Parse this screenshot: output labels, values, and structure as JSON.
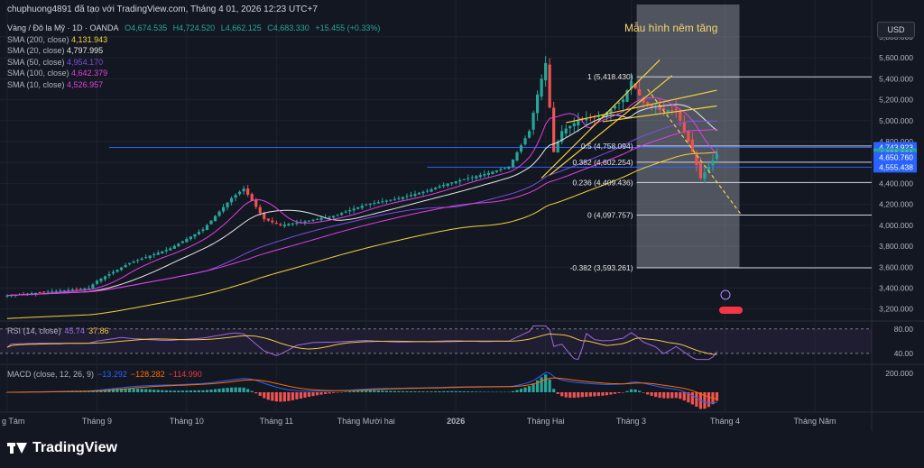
{
  "header": {
    "title": "chuphuong4891 đã tạo với TradingView.com, Tháng 4 01, 2026 12:23 UTC+7",
    "symbol": "Vàng / Đô la Mỹ · 1D · OANDA",
    "ohlc": {
      "o": "O4,674.535",
      "h": "H4,724.520",
      "l": "L4,662.125",
      "c": "C4,683.330",
      "chg": "+15.455 (+0.33%)"
    },
    "currency": "USD"
  },
  "pattern_label": "Mẫu hình nêm tăng",
  "legend": [
    {
      "label": "SMA (200, close)",
      "value": "4,131.943",
      "color": "#f5d23c"
    },
    {
      "label": "SMA (20, close)",
      "value": "4,797.995",
      "color": "#e8e8e8"
    },
    {
      "label": "SMA (50, close)",
      "value": "4,954.170",
      "color": "#7a4fe0"
    },
    {
      "label": "SMA (100, close)",
      "value": "4,642.379",
      "color": "#e040e0"
    },
    {
      "label": "SMA (10, close)",
      "value": "4,526.957",
      "color": "#e040e0"
    }
  ],
  "rsi": {
    "title": "RSI (14, close)",
    "v1": "45.74",
    "v2": "37.86"
  },
  "macd": {
    "title": "MACD (close, 12, 26, 9)",
    "v1": "−13.292",
    "v2": "−128.282",
    "v3": "−114.990"
  },
  "brand": "TradingView",
  "chart_data": {
    "type": "candlestick",
    "instrument": "Vàng / Đô la Mỹ",
    "y_axis_ticks": [
      3200,
      3400,
      3600,
      3800,
      4000,
      4200,
      4400,
      4600,
      4800,
      5000,
      5200,
      5400,
      5600,
      5800
    ],
    "y_tick_labels": [
      "3,200.000",
      "3,400.000",
      "3,600.000",
      "3,800.000",
      "4,000.000",
      "4,200.000",
      "4,400.000",
      "4,600.000",
      "4,800.000",
      "5,000.000",
      "5,200.000",
      "5,400.000",
      "5,600.000",
      "5,800.000"
    ],
    "ylim": [
      3120,
      5980
    ],
    "x_labels": [
      "g Tám",
      "Tháng 9",
      "Tháng 10",
      "Tháng 11",
      "Tháng Mười hai",
      "2026",
      "Tháng Hai",
      "Tháng 3",
      "Tháng 4",
      "Tháng Năm"
    ],
    "x_label_index": [
      0,
      22,
      44,
      66,
      88,
      110,
      132,
      153,
      176,
      198
    ],
    "n_bars": 175,
    "close_anchors": [
      [
        0,
        3330
      ],
      [
        20,
        3400
      ],
      [
        22,
        3470
      ],
      [
        30,
        3640
      ],
      [
        40,
        3780
      ],
      [
        48,
        3960
      ],
      [
        55,
        4260
      ],
      [
        58,
        4350
      ],
      [
        63,
        4060
      ],
      [
        67,
        4000
      ],
      [
        72,
        4030
      ],
      [
        80,
        4090
      ],
      [
        88,
        4200
      ],
      [
        95,
        4250
      ],
      [
        103,
        4330
      ],
      [
        108,
        4400
      ],
      [
        113,
        4450
      ],
      [
        118,
        4500
      ],
      [
        123,
        4560
      ],
      [
        128,
        4900
      ],
      [
        130,
        5250
      ],
      [
        132,
        5550
      ],
      [
        134,
        4700
      ],
      [
        136,
        4900
      ],
      [
        140,
        5000
      ],
      [
        146,
        5050
      ],
      [
        151,
        5200
      ],
      [
        153,
        5380
      ],
      [
        156,
        5170
      ],
      [
        160,
        5100
      ],
      [
        164,
        5100
      ],
      [
        168,
        4700
      ],
      [
        170,
        4450
      ],
      [
        172,
        4560
      ],
      [
        174,
        4683
      ]
    ],
    "fib_levels": [
      {
        "ratio": "1",
        "label": "1 (5,418.430)",
        "price": 5418.43
      },
      {
        "ratio": "0.5",
        "label": "0.5 (4,758.094)",
        "price": 4758.094
      },
      {
        "ratio": "0.382",
        "label": "0.382 (4,602.254)",
        "price": 4602.254
      },
      {
        "ratio": "0.236",
        "label": "0.236 (4,409.436)",
        "price": 4409.436
      },
      {
        "ratio": "0",
        "label": "0 (4,097.757)",
        "price": 4097.757
      },
      {
        "ratio": "-0.382",
        "label": "-0.382 (3,593.261)",
        "price": 3593.261
      }
    ],
    "price_tags": [
      {
        "label": "4,743.923",
        "price": 4743.923,
        "color": "#2962ff"
      },
      {
        "label": "4,683.330",
        "price": 4683.33,
        "color": "#26a69a"
      },
      {
        "label": "4,650.760",
        "price": 4650.76,
        "color": "#2962ff"
      },
      {
        "label": "4,555.438",
        "price": 4555.438,
        "color": "#2962ff"
      }
    ],
    "horizontal_lines": [
      4743.923,
      4555.438
    ],
    "rsi": {
      "levels": [
        40,
        80
      ],
      "level_labels": [
        "40.00",
        "80.00"
      ],
      "ylim": [
        25,
        90
      ]
    },
    "macd": {
      "level": 200,
      "level_label": "200.000"
    }
  }
}
